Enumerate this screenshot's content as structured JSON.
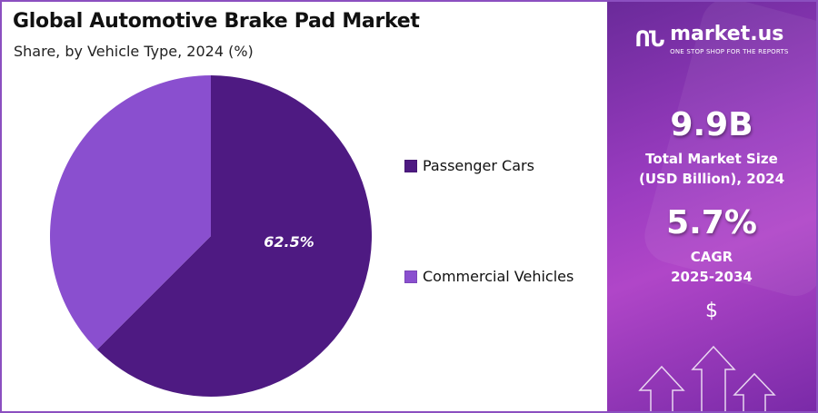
{
  "title": "Global Automotive Brake Pad Market",
  "subtitle": "Share, by Vehicle Type, 2024 (%)",
  "chart_data": {
    "type": "pie",
    "title": "Global Automotive Brake Pad Market",
    "subtitle": "Share, by Vehicle Type, 2024 (%)",
    "categories": [
      "Passenger Cars",
      "Commercial Vehicles"
    ],
    "values": [
      62.5,
      37.5
    ],
    "data_labels": [
      "62.5%",
      ""
    ],
    "colors": [
      "#4e1a82",
      "#8a4fcf"
    ],
    "start_angle": "top, clockwise",
    "legend_position": "right"
  },
  "sidebar": {
    "logo_name": "market.us",
    "logo_tagline": "ONE STOP SHOP FOR THE REPORTS",
    "market_size": "9.9B",
    "market_size_label_1": "Total Market Size",
    "market_size_label_2": "(USD Billion), 2024",
    "cagr": "5.7%",
    "cagr_label_1": "CAGR",
    "cagr_label_2": "2025-2034",
    "dollar_icon": "$"
  }
}
